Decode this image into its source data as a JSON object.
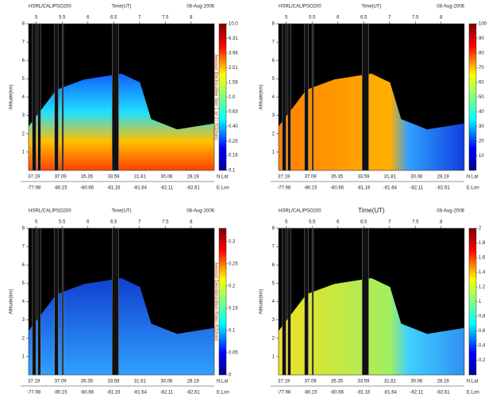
{
  "panels": [
    {
      "header": "HSRL/CALIPSO200",
      "time_label": "Time(UT)",
      "date": "08-Aug-2006",
      "xticks": [
        5,
        5.5,
        6,
        6.5,
        7,
        7.5,
        8
      ],
      "xlim": [
        4.85,
        8.45
      ],
      "y_label": "Altitude(km)",
      "ylim": [
        0,
        8
      ],
      "yticks": [
        1,
        2,
        3,
        4,
        5,
        6,
        7,
        8
      ],
      "colorbar": {
        "label": "Aerosol Backscatter (km-1 sr-1) (532nm)",
        "log": true,
        "lim": [
          0.1,
          10
        ],
        "ticks": [
          0.1,
          0.16,
          0.25,
          {
            "value": 0.4,
            "label": "0.40"
          },
          0.63,
          {
            "value": 1,
            "label": "1.0"
          },
          1.58,
          2.51,
          3.98,
          6.31,
          {
            "value": 10,
            "label": "10.0"
          }
        ]
      },
      "lat_label": "N.Lat",
      "lats": [
        37.19,
        37.09,
        35.35,
        33.59,
        31.81,
        30.06,
        28.19
      ],
      "lon_label": "E.Lon",
      "lons": [
        -77.98,
        -80.15,
        -80.66,
        -81.16,
        -81.64,
        -82.11,
        -82.61
      ]
    },
    {
      "header": "HSRL/CALIPSO200",
      "time_label": "Time(UT)",
      "date": "08-Aug-2006",
      "xticks": [
        5,
        5.5,
        6,
        6.5,
        7,
        7.5,
        8
      ],
      "xlim": [
        4.85,
        8.45
      ],
      "y_label": "Altitude(km)",
      "ylim": [
        0,
        8
      ],
      "yticks": [
        1,
        2,
        3,
        4,
        5,
        6,
        7,
        8
      ],
      "colorbar": {
        "log": false,
        "lim": [
          0,
          100
        ],
        "ticks": [
          10,
          20,
          30,
          40,
          50,
          60,
          70,
          80,
          90,
          100
        ]
      },
      "lat_label": "N.Lat",
      "lats": [
        37.19,
        37.09,
        35.35,
        33.59,
        31.81,
        30.06,
        28.19
      ],
      "lon_label": "E.Lon",
      "lons": [
        -77.98,
        -80.15,
        -80.66,
        -81.16,
        -81.64,
        -82.11,
        -82.61
      ]
    },
    {
      "header": "HSRL/CALIPSO200",
      "time_label": "Time(UT)",
      "date": "08-Aug-2006",
      "xticks": [
        5,
        5.5,
        6,
        6.5,
        7,
        7.5,
        8
      ],
      "xlim": [
        4.85,
        8.45
      ],
      "y_label": "Altitude(km)",
      "ylim": [
        0,
        8
      ],
      "yticks": [
        1,
        2,
        3,
        4,
        5,
        6,
        7,
        8
      ],
      "colorbar": {
        "label": "Aerosol Depolarization Ratio (532nm)",
        "log": false,
        "lim": [
          0,
          0.33
        ],
        "ticks": [
          0,
          0.05,
          0.1,
          0.15,
          0.2,
          0.25,
          0.3
        ]
      },
      "lat_label": "N.Lat",
      "lats": [
        37.19,
        37.09,
        35.35,
        33.59,
        31.81,
        30.06,
        28.19
      ],
      "lon_label": "E.Lon",
      "lons": [
        -77.98,
        -80.15,
        -80.66,
        -81.16,
        -81.64,
        -82.11,
        -82.61
      ]
    },
    {
      "header": "HSRL/CALIPSO200",
      "time_label": "Time(UT)",
      "date": "08-Aug-2006",
      "xticks": [
        5,
        5.5,
        6,
        6.5,
        7,
        7.5,
        8
      ],
      "xlim": [
        4.85,
        8.45
      ],
      "y_label": "Altitude(km)",
      "ylim": [
        0,
        8
      ],
      "yticks": [
        1,
        2,
        3,
        4,
        5,
        6,
        7,
        8
      ],
      "colorbar": {
        "log": false,
        "lim": [
          0,
          2
        ],
        "ticks": [
          0.2,
          0.4,
          0.6,
          0.8,
          1,
          1.2,
          1.4,
          1.6,
          1.8,
          2
        ]
      },
      "lat_label": "N.Lat",
      "lats": [
        37.19,
        37.09,
        35.35,
        33.59,
        31.81,
        30.06,
        28.19
      ],
      "lon_label": "E.Lon",
      "lons": [
        -77.98,
        -80.15,
        -80.66,
        -81.16,
        -81.64,
        -82.11,
        -82.61
      ]
    }
  ]
}
